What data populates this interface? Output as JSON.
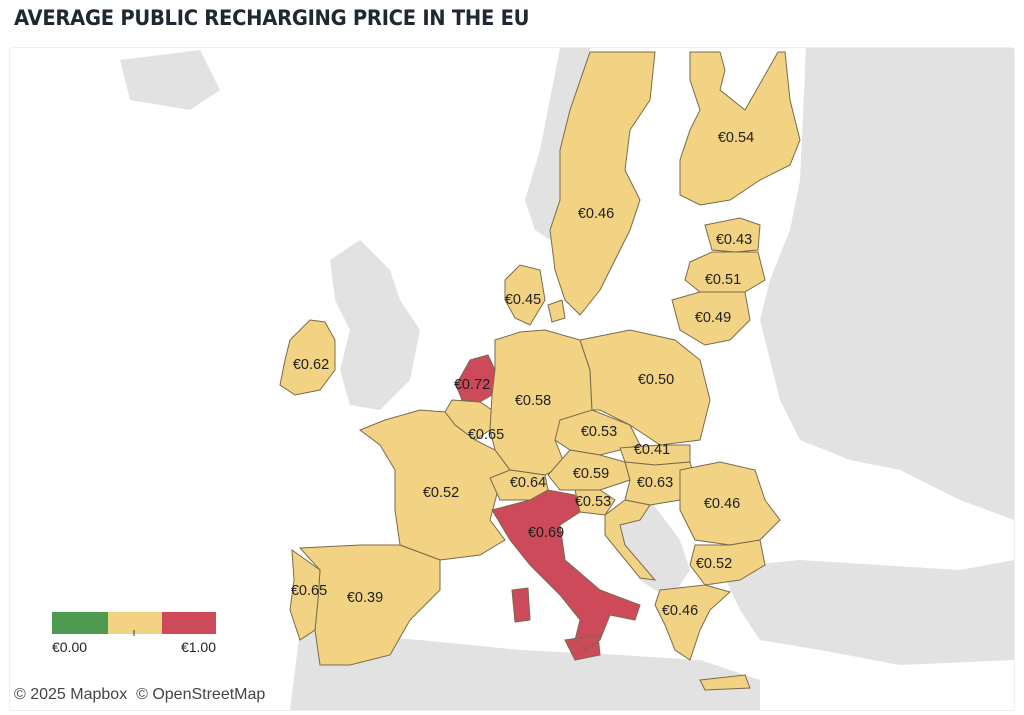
{
  "title": "AVERAGE PUBLIC RECHARGING PRICE IN THE EU",
  "colors": {
    "low": "#4e9a51",
    "mid": "#f2d283",
    "high": "#cc4a5a",
    "land": "#e2e2e2",
    "border": "#8a7a5a"
  },
  "icons": [
    "scale-low-swatch",
    "scale-mid-swatch",
    "scale-high-swatch"
  ],
  "countries": [
    {
      "name": "Sweden",
      "label": "€0.46",
      "value": 0.46
    },
    {
      "name": "Finland",
      "label": "€0.54",
      "value": 0.54
    },
    {
      "name": "Estonia",
      "label": "€0.43",
      "value": 0.43
    },
    {
      "name": "Latvia",
      "label": "€0.51",
      "value": 0.51
    },
    {
      "name": "Lithuania",
      "label": "€0.49",
      "value": 0.49
    },
    {
      "name": "Denmark",
      "label": "€0.45",
      "value": 0.45
    },
    {
      "name": "Ireland",
      "label": "€0.62",
      "value": 0.62
    },
    {
      "name": "Netherlands",
      "label": "€0.72",
      "value": 0.72
    },
    {
      "name": "Germany",
      "label": "€0.58",
      "value": 0.58
    },
    {
      "name": "Poland",
      "label": "€0.50",
      "value": 0.5
    },
    {
      "name": "Belgium",
      "label": "€0.65",
      "value": 0.65
    },
    {
      "name": "Czechia",
      "label": "€0.53",
      "value": 0.53
    },
    {
      "name": "Slovakia",
      "label": "€0.41",
      "value": 0.41
    },
    {
      "name": "Austria",
      "label": "€0.59",
      "value": 0.59
    },
    {
      "name": "Hungary",
      "label": "€0.63",
      "value": 0.63
    },
    {
      "name": "Switzerland",
      "label": "€0.64",
      "value": 0.64
    },
    {
      "name": "Slovenia",
      "label": "€0.53",
      "value": 0.53
    },
    {
      "name": "France",
      "label": "€0.52",
      "value": 0.52
    },
    {
      "name": "Romania",
      "label": "€0.46",
      "value": 0.46
    },
    {
      "name": "Italy",
      "label": "€0.69",
      "value": 0.69
    },
    {
      "name": "Bulgaria",
      "label": "€0.52",
      "value": 0.52
    },
    {
      "name": "Portugal",
      "label": "€0.65",
      "value": 0.65
    },
    {
      "name": "Spain",
      "label": "€0.39",
      "value": 0.39
    },
    {
      "name": "Greece",
      "label": "€0.46",
      "value": 0.46
    }
  ],
  "legend": {
    "min_label": "€0.00",
    "max_label": "€1.00",
    "min": 0.0,
    "max": 1.0
  },
  "attribution": {
    "mapbox": "© 2025 Mapbox",
    "osm": "© OpenStreetMap"
  }
}
